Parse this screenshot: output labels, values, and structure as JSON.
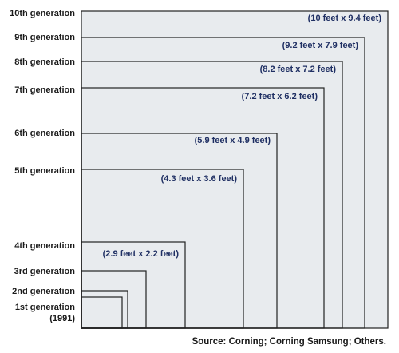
{
  "diagram": {
    "generations": [
      {
        "key": "gen1",
        "label_lines": [
          "1st generation",
          "(1991)"
        ],
        "dimensions": "",
        "width_ft": 1.0,
        "height_ft": 0.9
      },
      {
        "key": "gen2",
        "label_lines": [
          "2nd generation"
        ],
        "dimensions": "",
        "width_ft": 1.2,
        "height_ft": 1.1
      },
      {
        "key": "gen3",
        "label_lines": [
          "3rd generation"
        ],
        "dimensions": "",
        "width_ft": 1.7,
        "height_ft": 1.6
      },
      {
        "key": "gen4",
        "label_lines": [
          "4th generation"
        ],
        "dimensions": "(2.9 feet x 2.2 feet)",
        "width_ft": 2.9,
        "height_ft": 2.2
      },
      {
        "key": "gen5",
        "label_lines": [
          "5th generation"
        ],
        "dimensions": "(4.3 feet x 3.6 feet)",
        "width_ft": 4.3,
        "height_ft": 3.6
      },
      {
        "key": "gen6",
        "label_lines": [
          "6th generation"
        ],
        "dimensions": "(5.9 feet x 4.9 feet)",
        "width_ft": 5.9,
        "height_ft": 4.9
      },
      {
        "key": "gen7",
        "label_lines": [
          "7th generation"
        ],
        "dimensions": "(7.2 feet x 6.2 feet)",
        "width_ft": 7.2,
        "height_ft": 6.2
      },
      {
        "key": "gen8",
        "label_lines": [
          "8th generation"
        ],
        "dimensions": "(8.2 feet x 7.2 feet)",
        "width_ft": 8.2,
        "height_ft": 7.2
      },
      {
        "key": "gen9",
        "label_lines": [
          "9th generation"
        ],
        "dimensions": "(9.2 feet x 7.9 feet)",
        "width_ft": 9.2,
        "height_ft": 7.9
      },
      {
        "key": "gen10",
        "label_lines": [
          "10th generation"
        ],
        "dimensions": "(10 feet x 9.4 feet)",
        "width_ft": 10.0,
        "height_ft": 9.4
      }
    ],
    "source": "Source: Corning; Corning Samsung; Others.",
    "colors": {
      "background": "#e8ebee",
      "outline": "#222222",
      "dimension_text": "#1f2f63",
      "label_text": "#1a1a1a"
    }
  }
}
